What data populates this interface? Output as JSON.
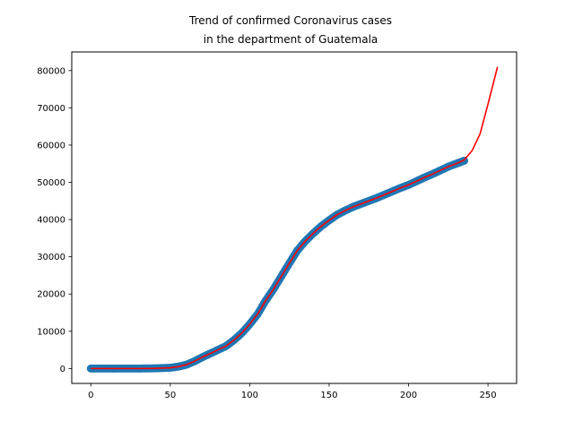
{
  "chart_data": {
    "type": "scatter",
    "title_line1": "Trend of confirmed Coronavirus cases",
    "title_line2": "in the department of Guatemala",
    "xlabel": "",
    "ylabel": "",
    "xlim": [
      -12,
      268
    ],
    "ylim": [
      -4000,
      85000
    ],
    "xticks": [
      0,
      50,
      100,
      150,
      200,
      250
    ],
    "yticks": [
      0,
      10000,
      20000,
      30000,
      40000,
      50000,
      60000,
      70000,
      80000
    ],
    "grid": false,
    "legend": "none",
    "scatter_color": "#1f77b4",
    "fit_color": "#ff0000",
    "observed": {
      "x": [
        0,
        10,
        20,
        30,
        40,
        50,
        55,
        60,
        65,
        70,
        75,
        80,
        85,
        90,
        95,
        100,
        105,
        110,
        115,
        120,
        125,
        130,
        135,
        140,
        145,
        150,
        155,
        160,
        165,
        170,
        175,
        180,
        185,
        190,
        195,
        200,
        205,
        210,
        215,
        220,
        225,
        230,
        235
      ],
      "y": [
        0,
        0,
        0,
        0,
        50,
        200,
        500,
        1000,
        1900,
        3000,
        4000,
        5000,
        6000,
        7600,
        9500,
        11900,
        14600,
        18200,
        21300,
        24800,
        28300,
        31700,
        34200,
        36300,
        38200,
        39800,
        41300,
        42400,
        43400,
        44200,
        45000,
        45800,
        46700,
        47600,
        48500,
        49300,
        50300,
        51300,
        52200,
        53200,
        54200,
        55000,
        55800
      ]
    },
    "fit": {
      "x": [
        0,
        10,
        20,
        30,
        40,
        50,
        55,
        60,
        65,
        70,
        75,
        80,
        85,
        90,
        95,
        100,
        105,
        110,
        115,
        120,
        125,
        130,
        135,
        140,
        145,
        150,
        155,
        160,
        165,
        170,
        175,
        180,
        185,
        190,
        195,
        200,
        205,
        210,
        215,
        220,
        225,
        230,
        235,
        240,
        245,
        250,
        253,
        256
      ],
      "y": [
        0,
        0,
        0,
        0,
        50,
        200,
        500,
        1000,
        1900,
        3000,
        4000,
        5000,
        6000,
        7600,
        9500,
        11900,
        14600,
        18200,
        21300,
        24800,
        28300,
        31700,
        34200,
        36300,
        38200,
        39800,
        41300,
        42400,
        43400,
        44200,
        45000,
        45800,
        46700,
        47600,
        48500,
        49300,
        50300,
        51300,
        52200,
        53200,
        54200,
        55000,
        56000,
        58500,
        63000,
        71000,
        76000,
        81000
      ]
    }
  }
}
